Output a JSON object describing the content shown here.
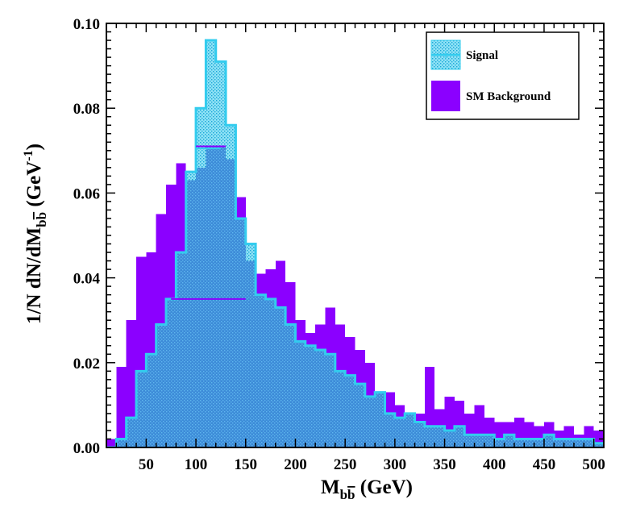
{
  "chart_data": {
    "type": "histogram",
    "title": "",
    "xlabel": {
      "main": "M",
      "sub": "b",
      "sub_bar": "b",
      "unit": " (GeV)"
    },
    "ylabel": {
      "prefix": "1/N dN/dM",
      "sub": "b",
      "sub_bar": "b",
      "unit_pre": " (GeV",
      "exp": "-1",
      "unit_post": ")"
    },
    "xlim": [
      10,
      510
    ],
    "ylim": [
      0,
      0.1
    ],
    "x_ticks": [
      50,
      100,
      150,
      200,
      250,
      300,
      350,
      400,
      450,
      500
    ],
    "x_tick_labels": [
      "50",
      "100",
      "150",
      "200",
      "250",
      "300",
      "350",
      "400",
      "450",
      "500"
    ],
    "y_ticks": [
      0,
      0.02,
      0.04,
      0.06,
      0.08,
      0.1
    ],
    "y_tick_labels": [
      "0.00",
      "0.02",
      "0.04",
      "0.06",
      "0.08",
      "0.10"
    ],
    "bin_width": 10,
    "bin_lows": [
      10,
      20,
      30,
      40,
      50,
      60,
      70,
      80,
      90,
      100,
      110,
      120,
      130,
      140,
      150,
      160,
      170,
      180,
      190,
      200,
      210,
      220,
      230,
      240,
      250,
      260,
      270,
      280,
      290,
      300,
      310,
      320,
      330,
      340,
      350,
      360,
      370,
      380,
      390,
      400,
      410,
      420,
      430,
      440,
      450,
      460,
      470,
      480,
      490,
      500
    ],
    "series": [
      {
        "name": "SM Background",
        "color": "#8b00ff",
        "style": "solid",
        "values": [
          0.002,
          0.019,
          0.03,
          0.045,
          0.046,
          0.055,
          0.062,
          0.067,
          0.063,
          0.066,
          0.071,
          0.071,
          0.068,
          0.059,
          0.044,
          0.041,
          0.042,
          0.044,
          0.039,
          0.03,
          0.027,
          0.029,
          0.033,
          0.029,
          0.026,
          0.023,
          0.02,
          0.013,
          0.013,
          0.01,
          0.008,
          0.008,
          0.019,
          0.009,
          0.012,
          0.011,
          0.008,
          0.01,
          0.007,
          0.006,
          0.006,
          0.007,
          0.006,
          0.005,
          0.006,
          0.004,
          0.005,
          0.003,
          0.005,
          0.004
        ]
      },
      {
        "name": "Signal",
        "color": "#33ccee",
        "style": "hatched",
        "values": [
          0.0,
          0.002,
          0.007,
          0.018,
          0.022,
          0.029,
          0.035,
          0.046,
          0.065,
          0.08,
          0.096,
          0.091,
          0.076,
          0.054,
          0.048,
          0.036,
          0.035,
          0.033,
          0.029,
          0.025,
          0.024,
          0.023,
          0.022,
          0.018,
          0.017,
          0.015,
          0.012,
          0.013,
          0.008,
          0.007,
          0.008,
          0.006,
          0.005,
          0.005,
          0.004,
          0.005,
          0.003,
          0.003,
          0.003,
          0.002,
          0.003,
          0.002,
          0.002,
          0.002,
          0.003,
          0.002,
          0.002,
          0.002,
          0.002,
          0.001
        ]
      }
    ],
    "overlap_color": "#3d8bd8",
    "annotations": [
      {
        "type": "hline",
        "x_range": [
          75,
          150
        ],
        "y": 0.035,
        "color": "#8b00ff"
      },
      {
        "type": "hline",
        "x_range": [
          100,
          130
        ],
        "y": 0.071,
        "color": "#8b00ff"
      },
      {
        "type": "hline",
        "x_range": [
          100,
          125
        ],
        "y": 0.0705,
        "color": "#33ccee"
      }
    ],
    "legend": {
      "position": "top-right",
      "entries": [
        {
          "label": "Signal",
          "series": "Signal"
        },
        {
          "label": "SM Background",
          "series": "SM Background"
        }
      ]
    },
    "grid": false
  }
}
